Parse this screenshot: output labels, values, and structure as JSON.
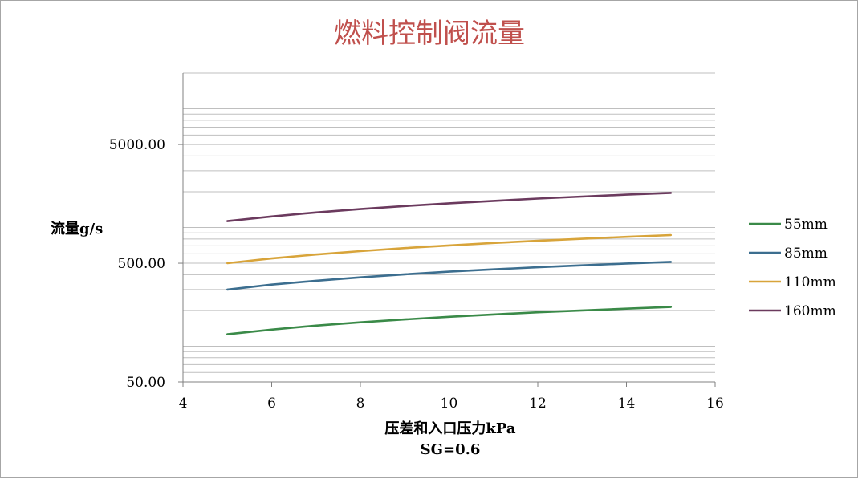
{
  "chart_data": {
    "type": "line",
    "title": "燃料控制阀流量",
    "xlabel": "压差和入口压力kPa",
    "xlabel_note": "SG=0.6",
    "ylabel": "流量g/s",
    "xlim": [
      4,
      16
    ],
    "x_ticks": [
      "4",
      "6",
      "8",
      "10",
      "12",
      "14",
      "16"
    ],
    "y_scale": "log",
    "ylim": [
      50,
      20000
    ],
    "y_ticks": [
      {
        "value": 50,
        "label": "50.00"
      },
      {
        "value": 500,
        "label": "500.00"
      },
      {
        "value": 5000,
        "label": "5000.00"
      }
    ],
    "grid": "horizontal major and minor (log)",
    "legend_position": "right",
    "x": [
      5,
      6,
      7,
      8,
      9,
      10,
      11,
      12,
      13,
      14,
      15
    ],
    "series": [
      {
        "name": "55mm",
        "color": "#3a8a48",
        "values": [
          126,
          138,
          149,
          159,
          168,
          177,
          185,
          193,
          200,
          207,
          214
        ]
      },
      {
        "name": "85mm",
        "color": "#3c6e8f",
        "values": [
          300,
          330,
          356,
          380,
          403,
          424,
          444,
          462,
          480,
          497,
          513
        ]
      },
      {
        "name": "110mm",
        "color": "#d8a43a",
        "values": [
          500,
          548,
          592,
          632,
          670,
          706,
          740,
          772,
          803,
          833,
          862
        ]
      },
      {
        "name": "160mm",
        "color": "#6b3a5e",
        "values": [
          1130,
          1238,
          1337,
          1429,
          1516,
          1597,
          1675,
          1750,
          1821,
          1890,
          1956
        ]
      }
    ]
  }
}
